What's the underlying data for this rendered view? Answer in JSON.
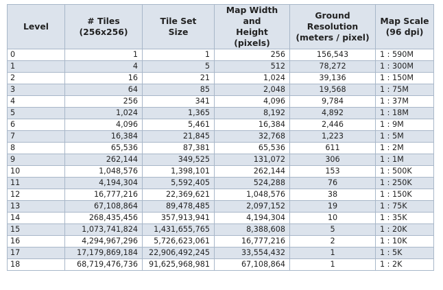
{
  "headers": {
    "level": "Level",
    "tiles_line1": "# Tiles",
    "tiles_line2": "(256x256)",
    "tileset_line1": "Tile Set",
    "tileset_line2": "Size",
    "mapwidth_line1": "Map Width and",
    "mapwidth_line2": "Height (pixels)",
    "ground_line1": "Ground Resolution",
    "ground_line2": "(meters / pixel)",
    "scale_line1": "Map Scale",
    "scale_line2": "(96 dpi)"
  },
  "rows": [
    {
      "level": "0",
      "tiles": "1",
      "tileset": "1",
      "width": "256",
      "resolution": "156,543",
      "scale": "1 : 590M"
    },
    {
      "level": "1",
      "tiles": "4",
      "tileset": "5",
      "width": "512",
      "resolution": "78,272",
      "scale": "1 : 300M"
    },
    {
      "level": "2",
      "tiles": "16",
      "tileset": "21",
      "width": "1,024",
      "resolution": "39,136",
      "scale": "1 : 150M"
    },
    {
      "level": "3",
      "tiles": "64",
      "tileset": "85",
      "width": "2,048",
      "resolution": "19,568",
      "scale": "1 : 75M"
    },
    {
      "level": "4",
      "tiles": "256",
      "tileset": "341",
      "width": "4,096",
      "resolution": "9,784",
      "scale": "1 : 37M"
    },
    {
      "level": "5",
      "tiles": "1,024",
      "tileset": "1,365",
      "width": "8,192",
      "resolution": "4,892",
      "scale": "1 : 18M"
    },
    {
      "level": "6",
      "tiles": "4,096",
      "tileset": "5,461",
      "width": "16,384",
      "resolution": "2,446",
      "scale": "1 : 9M"
    },
    {
      "level": "7",
      "tiles": "16,384",
      "tileset": "21,845",
      "width": "32,768",
      "resolution": "1,223",
      "scale": "1 : 5M"
    },
    {
      "level": "8",
      "tiles": "65,536",
      "tileset": "87,381",
      "width": "65,536",
      "resolution": "611",
      "scale": "1 : 2M"
    },
    {
      "level": "9",
      "tiles": "262,144",
      "tileset": "349,525",
      "width": "131,072",
      "resolution": "306",
      "scale": "1 : 1M"
    },
    {
      "level": "10",
      "tiles": "1,048,576",
      "tileset": "1,398,101",
      "width": "262,144",
      "resolution": "153",
      "scale": "1 : 500K"
    },
    {
      "level": "11",
      "tiles": "4,194,304",
      "tileset": "5,592,405",
      "width": "524,288",
      "resolution": "76",
      "scale": "1 : 250K"
    },
    {
      "level": "12",
      "tiles": "16,777,216",
      "tileset": "22,369,621",
      "width": "1,048,576",
      "resolution": "38",
      "scale": "1 : 150K"
    },
    {
      "level": "13",
      "tiles": "67,108,864",
      "tileset": "89,478,485",
      "width": "2,097,152",
      "resolution": "19",
      "scale": "1 : 75K"
    },
    {
      "level": "14",
      "tiles": "268,435,456",
      "tileset": "357,913,941",
      "width": "4,194,304",
      "resolution": "10",
      "scale": "1 : 35K"
    },
    {
      "level": "15",
      "tiles": "1,073,741,824",
      "tileset": "1,431,655,765",
      "width": "8,388,608",
      "resolution": "5",
      "scale": "1 : 20K"
    },
    {
      "level": "16",
      "tiles": "4,294,967,296",
      "tileset": "5,726,623,061",
      "width": "16,777,216",
      "resolution": "2",
      "scale": "1 : 10K"
    },
    {
      "level": "17",
      "tiles": "17,179,869,184",
      "tileset": "22,906,492,245",
      "width": "33,554,432",
      "resolution": "1",
      "scale": "1 : 5K"
    },
    {
      "level": "18",
      "tiles": "68,719,476,736",
      "tileset": "91,625,968,981",
      "width": "67,108,864",
      "resolution": "1",
      "scale": "1 : 2K"
    }
  ],
  "colors": {
    "header_bg": "#dce3ec",
    "stripe_bg": "#dce3ec",
    "border": "#a7b6c8"
  }
}
